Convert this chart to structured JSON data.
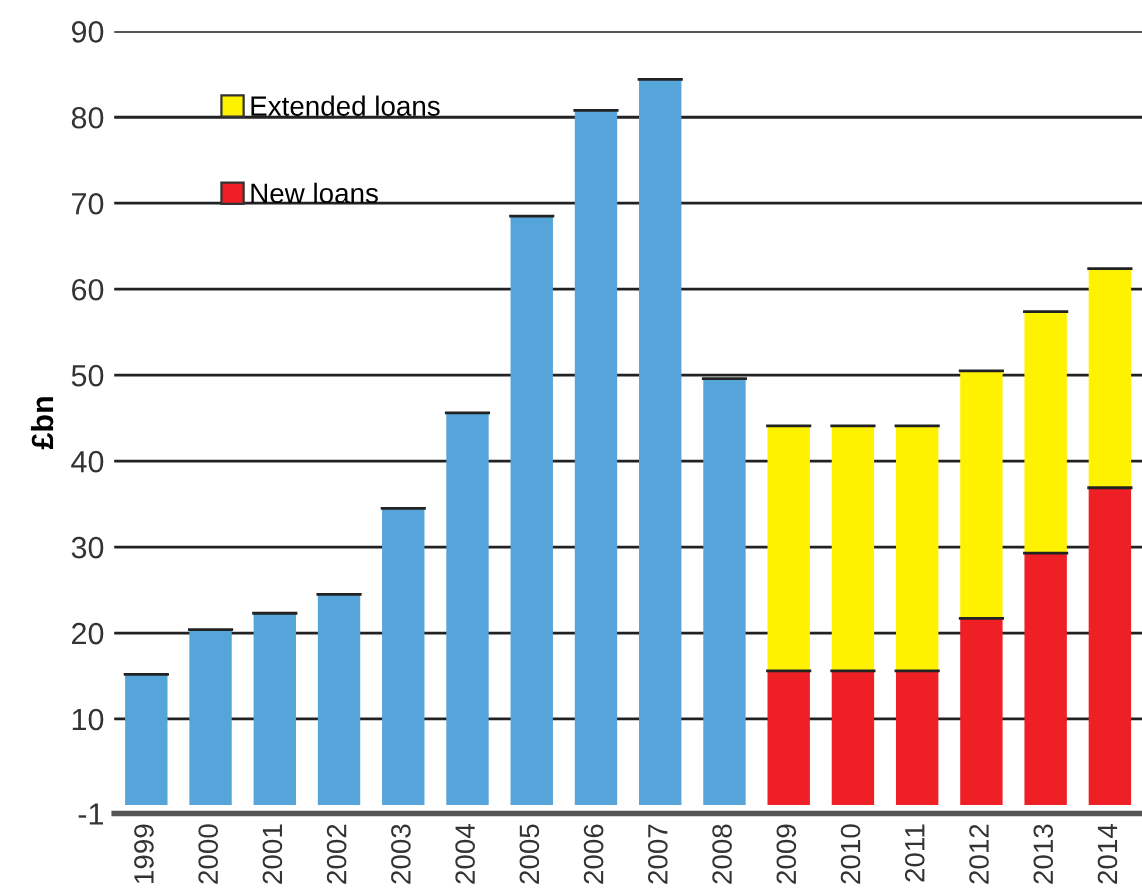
{
  "chart_data": {
    "type": "bar",
    "stacked": true,
    "ylabel": "£bn",
    "categories": [
      "1999",
      "2000",
      "2001",
      "2002",
      "2003",
      "2004",
      "2005",
      "2006",
      "2007",
      "2008",
      "2009",
      "2010",
      "2011",
      "2012",
      "2013",
      "2014"
    ],
    "series": [
      {
        "color": "#56a5da",
        "values": [
          15.2,
          20.4,
          22.3,
          24.5,
          34.5,
          45.6,
          68.5,
          80.8,
          84.4,
          49.6,
          null,
          null,
          null,
          null,
          null,
          null
        ]
      },
      {
        "name": "New loans",
        "color": "#ee1f25",
        "values": [
          null,
          null,
          null,
          null,
          null,
          null,
          null,
          null,
          null,
          null,
          15.6,
          15.6,
          15.6,
          21.7,
          29.3,
          36.9
        ]
      },
      {
        "name": "Extended loans",
        "color": "#fff200",
        "values": [
          null,
          null,
          null,
          null,
          null,
          null,
          null,
          null,
          null,
          null,
          28.5,
          28.5,
          28.5,
          28.8,
          28.1,
          25.5
        ]
      }
    ],
    "ylim": [
      -1,
      90
    ],
    "yticks": [
      -1,
      10,
      20,
      30,
      40,
      50,
      60,
      70,
      80,
      90
    ],
    "grid": "y",
    "legend": "top left"
  }
}
